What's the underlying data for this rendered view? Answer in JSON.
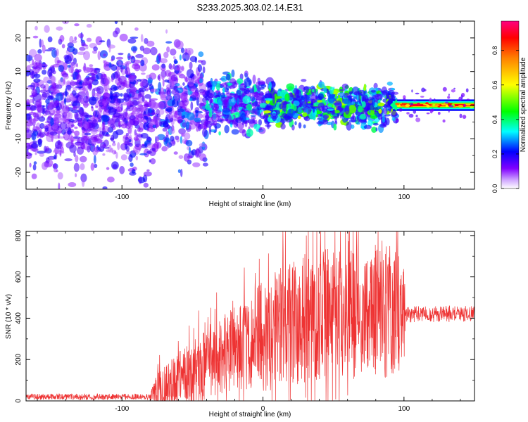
{
  "figure": {
    "title": "S233.2025.303.02.14.E31"
  },
  "chart_data": [
    {
      "type": "heatmap",
      "title": "S233.2025.303.02.14.E31",
      "xlabel": "Height of straight line (km)",
      "ylabel": "Frequency (Hz)",
      "xlim": [
        -168,
        150
      ],
      "ylim": [
        -25,
        25
      ],
      "xticks": [
        -100,
        0,
        100
      ],
      "yticks": [
        -20,
        -10,
        0,
        10,
        20
      ],
      "xtick_labels": [
        "-100",
        "0",
        "100"
      ],
      "ytick_labels": [
        "-20",
        "-10",
        "0",
        "10",
        "20"
      ],
      "grid": false,
      "colorbar": {
        "label": "Normalized spectral amplitude",
        "range": [
          0,
          0.97
        ],
        "ticks": [
          0.0,
          0.2,
          0.4,
          0.6,
          0.8
        ],
        "tick_labels": [
          "0.0",
          "0.2",
          "0.4",
          "0.6",
          "0.8"
        ],
        "colors": [
          "#ffffff",
          "#8000ff",
          "#0000ff",
          "#00ffff",
          "#00ff00",
          "#ffff00",
          "#ff8000",
          "#ff0000",
          "#ff0080"
        ]
      },
      "zones": [
        {
          "x": [
            -168,
            -80
          ],
          "freq_spread": 25,
          "amplitude": [
            0.05,
            0.25
          ]
        },
        {
          "x": [
            -80,
            -40
          ],
          "freq_spread": 20,
          "amplitude": [
            0.05,
            0.3
          ]
        },
        {
          "x": [
            -40,
            0
          ],
          "freq_spread": 10,
          "amplitude": [
            0.1,
            0.4
          ]
        },
        {
          "x": [
            0,
            95
          ],
          "freq_spread": 7,
          "amplitude": [
            0.15,
            0.6
          ]
        },
        {
          "x": [
            95,
            150
          ],
          "freq_spread": 1,
          "amplitude": [
            0.85,
            0.95
          ]
        }
      ]
    },
    {
      "type": "line",
      "xlabel": "Height of straight line (km)",
      "ylabel": "SNR (10 * v/v)",
      "xlim": [
        -168,
        150
      ],
      "ylim": [
        0,
        820
      ],
      "xticks": [
        -100,
        0,
        100
      ],
      "yticks": [
        0,
        200,
        400,
        600,
        800
      ],
      "xtick_labels": [
        "-100",
        "0",
        "100"
      ],
      "ytick_labels": [
        "0",
        "200",
        "400",
        "600",
        "800"
      ],
      "grid": false,
      "color": "#ee3333",
      "envelope": {
        "x": [
          -168,
          -80,
          -75,
          -60,
          -40,
          -20,
          0,
          20,
          40,
          60,
          80,
          100,
          101,
          150
        ],
        "y": [
          20,
          20,
          40,
          80,
          150,
          230,
          300,
          350,
          390,
          400,
          390,
          410,
          420,
          420
        ],
        "max_amp": [
          15,
          15,
          120,
          180,
          220,
          260,
          320,
          380,
          400,
          380,
          420,
          360,
          40,
          40
        ]
      }
    }
  ]
}
